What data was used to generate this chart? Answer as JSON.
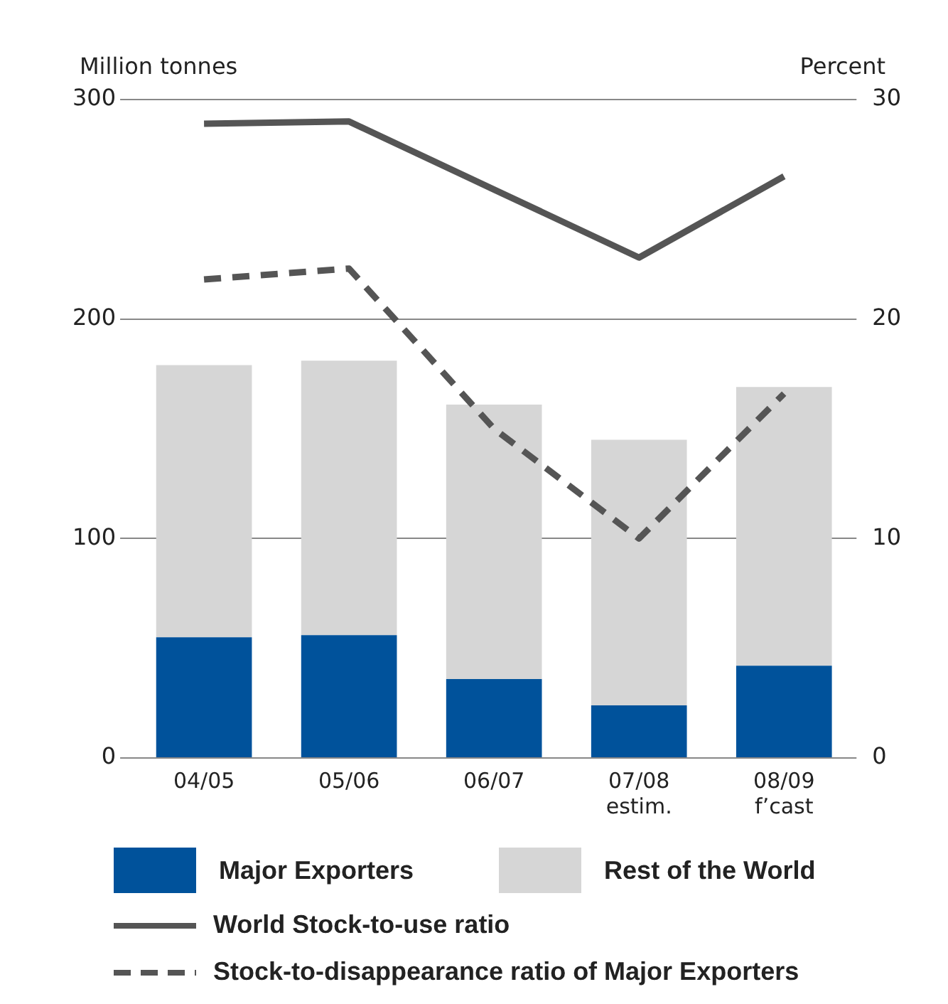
{
  "chart_data": {
    "type": "bar",
    "stacked": true,
    "categories": [
      "04/05",
      "05/06",
      "06/07",
      "07/08\nestim.",
      "08/09\nf’cast"
    ],
    "ylabel": "Million tonnes",
    "y2label": "Percent",
    "ylim": [
      0,
      300
    ],
    "yticks": [
      0,
      100,
      200,
      300
    ],
    "y2lim": [
      0,
      30
    ],
    "y2ticks": [
      0,
      10,
      20,
      30
    ],
    "grid": "y",
    "legend": "bottom",
    "marker": "none",
    "series": [
      {
        "name": "Major Exporters",
        "color": "#00529b",
        "values": [
          55,
          56,
          36,
          24,
          42
        ]
      },
      {
        "name": "Rest of the World",
        "color": "#d6d6d6",
        "values": [
          124,
          125,
          125,
          121,
          127
        ]
      },
      {
        "name": "World Stock-to-use ratio",
        "type": "line",
        "axis": "y2",
        "line_style": "solid",
        "color": "#555555",
        "values": [
          28.9,
          29,
          25.9,
          22.8,
          26.5
        ]
      },
      {
        "name": "Stock-to-disappearance ratio of Major Exporters",
        "type": "line",
        "axis": "y2",
        "line_style": "dashed",
        "color": "#555555",
        "values": [
          21.8,
          22.3,
          15,
          10,
          16.6
        ]
      }
    ]
  }
}
